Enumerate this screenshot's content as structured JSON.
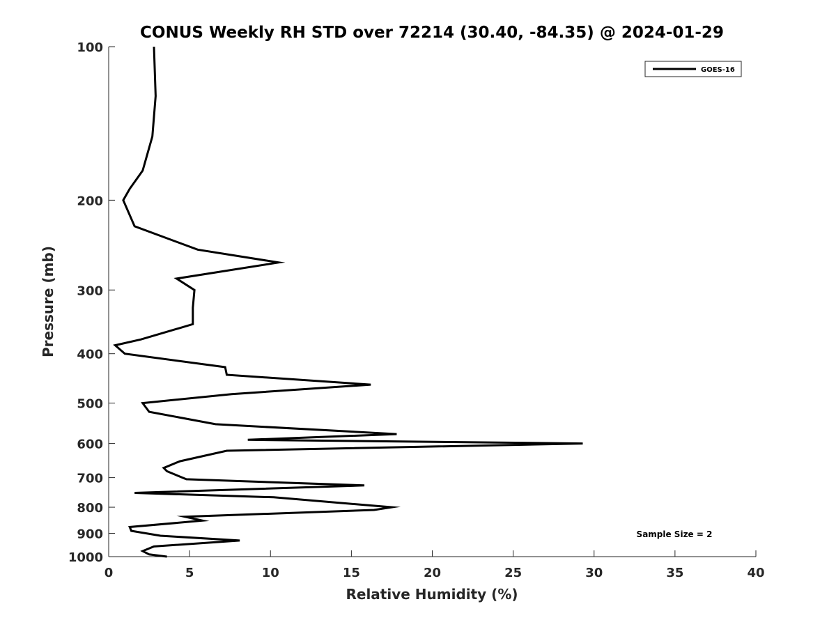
{
  "chart_data": {
    "type": "line",
    "title": "CONUS Weekly RH STD over 72214 (30.40, -84.35) @ 2024-01-29",
    "xlabel": "Relative Humidity (%)",
    "ylabel": "Pressure (mb)",
    "xlim": [
      0,
      40
    ],
    "ylim": [
      100,
      1000
    ],
    "y_scale": "log",
    "y_reversed": true,
    "grid": false,
    "legend_position": "top-right",
    "x_ticks": [
      0,
      5,
      10,
      15,
      20,
      25,
      30,
      35,
      40
    ],
    "y_ticks": [
      100,
      200,
      300,
      400,
      500,
      600,
      700,
      800,
      900,
      1000
    ],
    "annotation": "Sample Size = 2",
    "colors": {
      "line": "#000000",
      "axis": "#262626"
    },
    "series": [
      {
        "name": "GOES-16",
        "points": [
          [
            2.8,
            100
          ],
          [
            2.9,
            125
          ],
          [
            2.7,
            150
          ],
          [
            2.1,
            175
          ],
          [
            1.3,
            190
          ],
          [
            0.9,
            200
          ],
          [
            1.6,
            225
          ],
          [
            5.5,
            250
          ],
          [
            10.5,
            265
          ],
          [
            4.2,
            285
          ],
          [
            5.3,
            300
          ],
          [
            5.2,
            325
          ],
          [
            5.2,
            350
          ],
          [
            2.0,
            375
          ],
          [
            0.4,
            385
          ],
          [
            1.0,
            400
          ],
          [
            7.2,
            425
          ],
          [
            7.3,
            440
          ],
          [
            16.2,
            460
          ],
          [
            7.6,
            480
          ],
          [
            2.1,
            500
          ],
          [
            2.5,
            520
          ],
          [
            6.6,
            550
          ],
          [
            17.8,
            575
          ],
          [
            8.6,
            590
          ],
          [
            29.3,
            600
          ],
          [
            7.3,
            620
          ],
          [
            4.4,
            650
          ],
          [
            3.4,
            670
          ],
          [
            3.6,
            680
          ],
          [
            4.8,
            705
          ],
          [
            15.8,
            725
          ],
          [
            1.6,
            750
          ],
          [
            10.2,
            765
          ],
          [
            17.5,
            800
          ],
          [
            16.4,
            810
          ],
          [
            4.7,
            835
          ],
          [
            5.8,
            850
          ],
          [
            1.3,
            875
          ],
          [
            1.4,
            890
          ],
          [
            3.2,
            910
          ],
          [
            8.1,
            930
          ],
          [
            2.8,
            955
          ],
          [
            2.1,
            975
          ],
          [
            2.5,
            990
          ],
          [
            3.6,
            1000
          ]
        ]
      }
    ]
  }
}
